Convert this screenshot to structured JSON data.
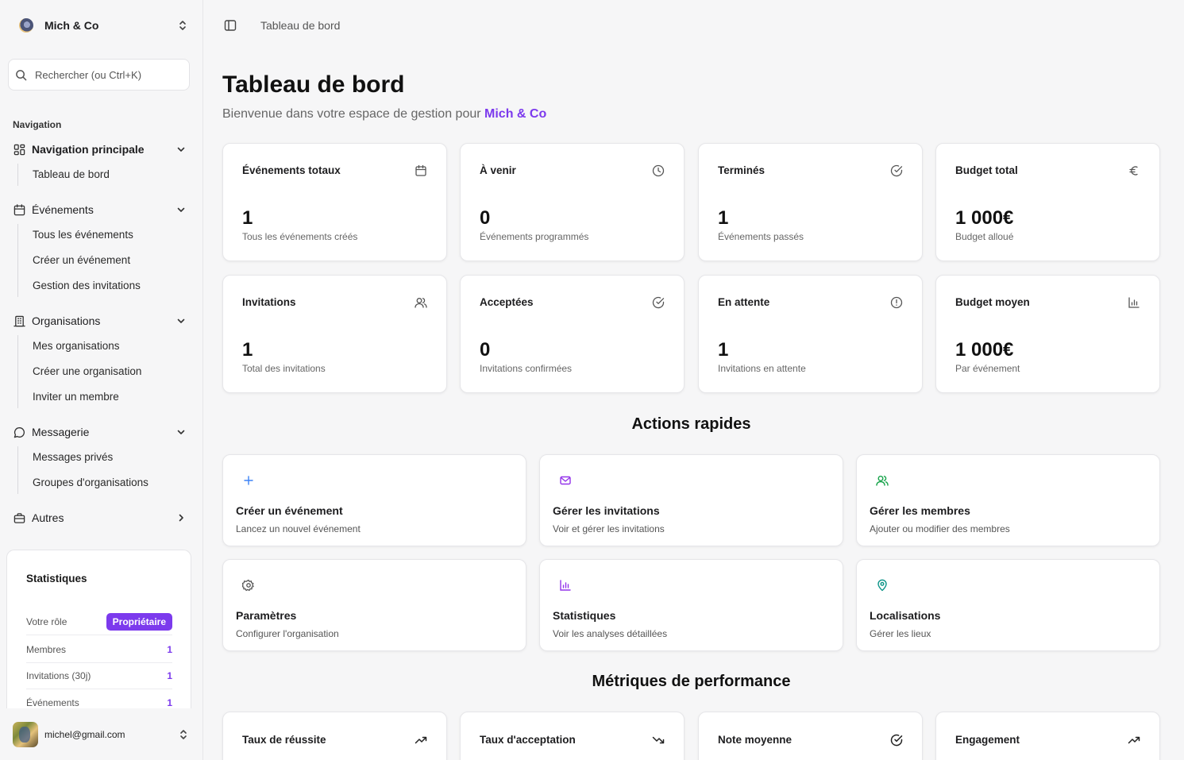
{
  "org": {
    "name": "Mich & Co"
  },
  "search": {
    "placeholder": "Rechercher (ou Ctrl+K)"
  },
  "nav": {
    "caption": "Navigation",
    "groups": [
      {
        "label": "Navigation principale",
        "icon": "layout-grid-icon",
        "expanded": true,
        "items": [
          "Tableau de bord"
        ]
      },
      {
        "label": "Événements",
        "icon": "calendar-icon",
        "expanded": true,
        "items": [
          "Tous les événements",
          "Créer un événement",
          "Gestion des invitations"
        ]
      },
      {
        "label": "Organisations",
        "icon": "building-icon",
        "expanded": true,
        "items": [
          "Mes organisations",
          "Créer une organisation",
          "Inviter un membre"
        ]
      },
      {
        "label": "Messagerie",
        "icon": "message-circle-icon",
        "expanded": true,
        "items": [
          "Messages privés",
          "Groupes d'organisations"
        ]
      },
      {
        "label": "Autres",
        "icon": "briefcase-icon",
        "expanded": false,
        "items": []
      }
    ]
  },
  "stats": {
    "title": "Statistiques",
    "role_label": "Votre rôle",
    "role_value": "Propriétaire",
    "rows": [
      {
        "label": "Membres",
        "value": "1"
      },
      {
        "label": "Invitations (30j)",
        "value": "1"
      },
      {
        "label": "Événements",
        "value": "1"
      }
    ]
  },
  "user": {
    "email": "michel@gmail.com"
  },
  "header": {
    "breadcrumb": "Tableau de bord"
  },
  "page": {
    "title": "Tableau de bord",
    "subtitle_prefix": "Bienvenue dans votre espace de gestion pour",
    "subtitle_org": "Mich & Co"
  },
  "kpis": [
    {
      "title": "Événements totaux",
      "value": "1",
      "desc": "Tous les événements créés",
      "icon": "calendar-icon"
    },
    {
      "title": "À venir",
      "value": "0",
      "desc": "Événements programmés",
      "icon": "clock-icon"
    },
    {
      "title": "Terminés",
      "value": "1",
      "desc": "Événements passés",
      "icon": "check-circle-icon"
    },
    {
      "title": "Budget total",
      "value": "1 000€",
      "desc": "Budget alloué",
      "icon": "euro-icon"
    },
    {
      "title": "Invitations",
      "value": "1",
      "desc": "Total des invitations",
      "icon": "users-icon"
    },
    {
      "title": "Acceptées",
      "value": "0",
      "desc": "Invitations confirmées",
      "icon": "check-circle-icon"
    },
    {
      "title": "En attente",
      "value": "1",
      "desc": "Invitations en attente",
      "icon": "alert-circle-icon"
    },
    {
      "title": "Budget moyen",
      "value": "1 000€",
      "desc": "Par événement",
      "icon": "bar-chart-icon"
    }
  ],
  "quick_actions": {
    "title": "Actions rapides",
    "items": [
      {
        "title": "Créer un événement",
        "desc": "Lancez un nouvel événement",
        "icon": "plus-icon",
        "color": "#3b82f6"
      },
      {
        "title": "Gérer les invitations",
        "desc": "Voir et gérer les invitations",
        "icon": "mail-icon",
        "color": "#9333ea"
      },
      {
        "title": "Gérer les membres",
        "desc": "Ajouter ou modifier des membres",
        "icon": "users-icon",
        "color": "#16a34a"
      },
      {
        "title": "Paramètres",
        "desc": "Configurer l'organisation",
        "icon": "gear-icon",
        "color": "#555555"
      },
      {
        "title": "Statistiques",
        "desc": "Voir les analyses détaillées",
        "icon": "bar-chart-icon",
        "color": "#9333ea"
      },
      {
        "title": "Localisations",
        "desc": "Gérer les lieux",
        "icon": "map-pin-icon",
        "color": "#0d9488"
      }
    ]
  },
  "performance": {
    "title": "Métriques de performance",
    "items": [
      {
        "title": "Taux de réussite",
        "icon": "trending-up-icon"
      },
      {
        "title": "Taux d'acceptation",
        "icon": "trending-down-icon"
      },
      {
        "title": "Note moyenne",
        "icon": "check-circle-icon"
      },
      {
        "title": "Engagement",
        "icon": "trending-up-icon"
      }
    ]
  },
  "colors": {
    "accent": "#7c3aed",
    "background": "#f6f6f7",
    "card": "#ffffff"
  }
}
